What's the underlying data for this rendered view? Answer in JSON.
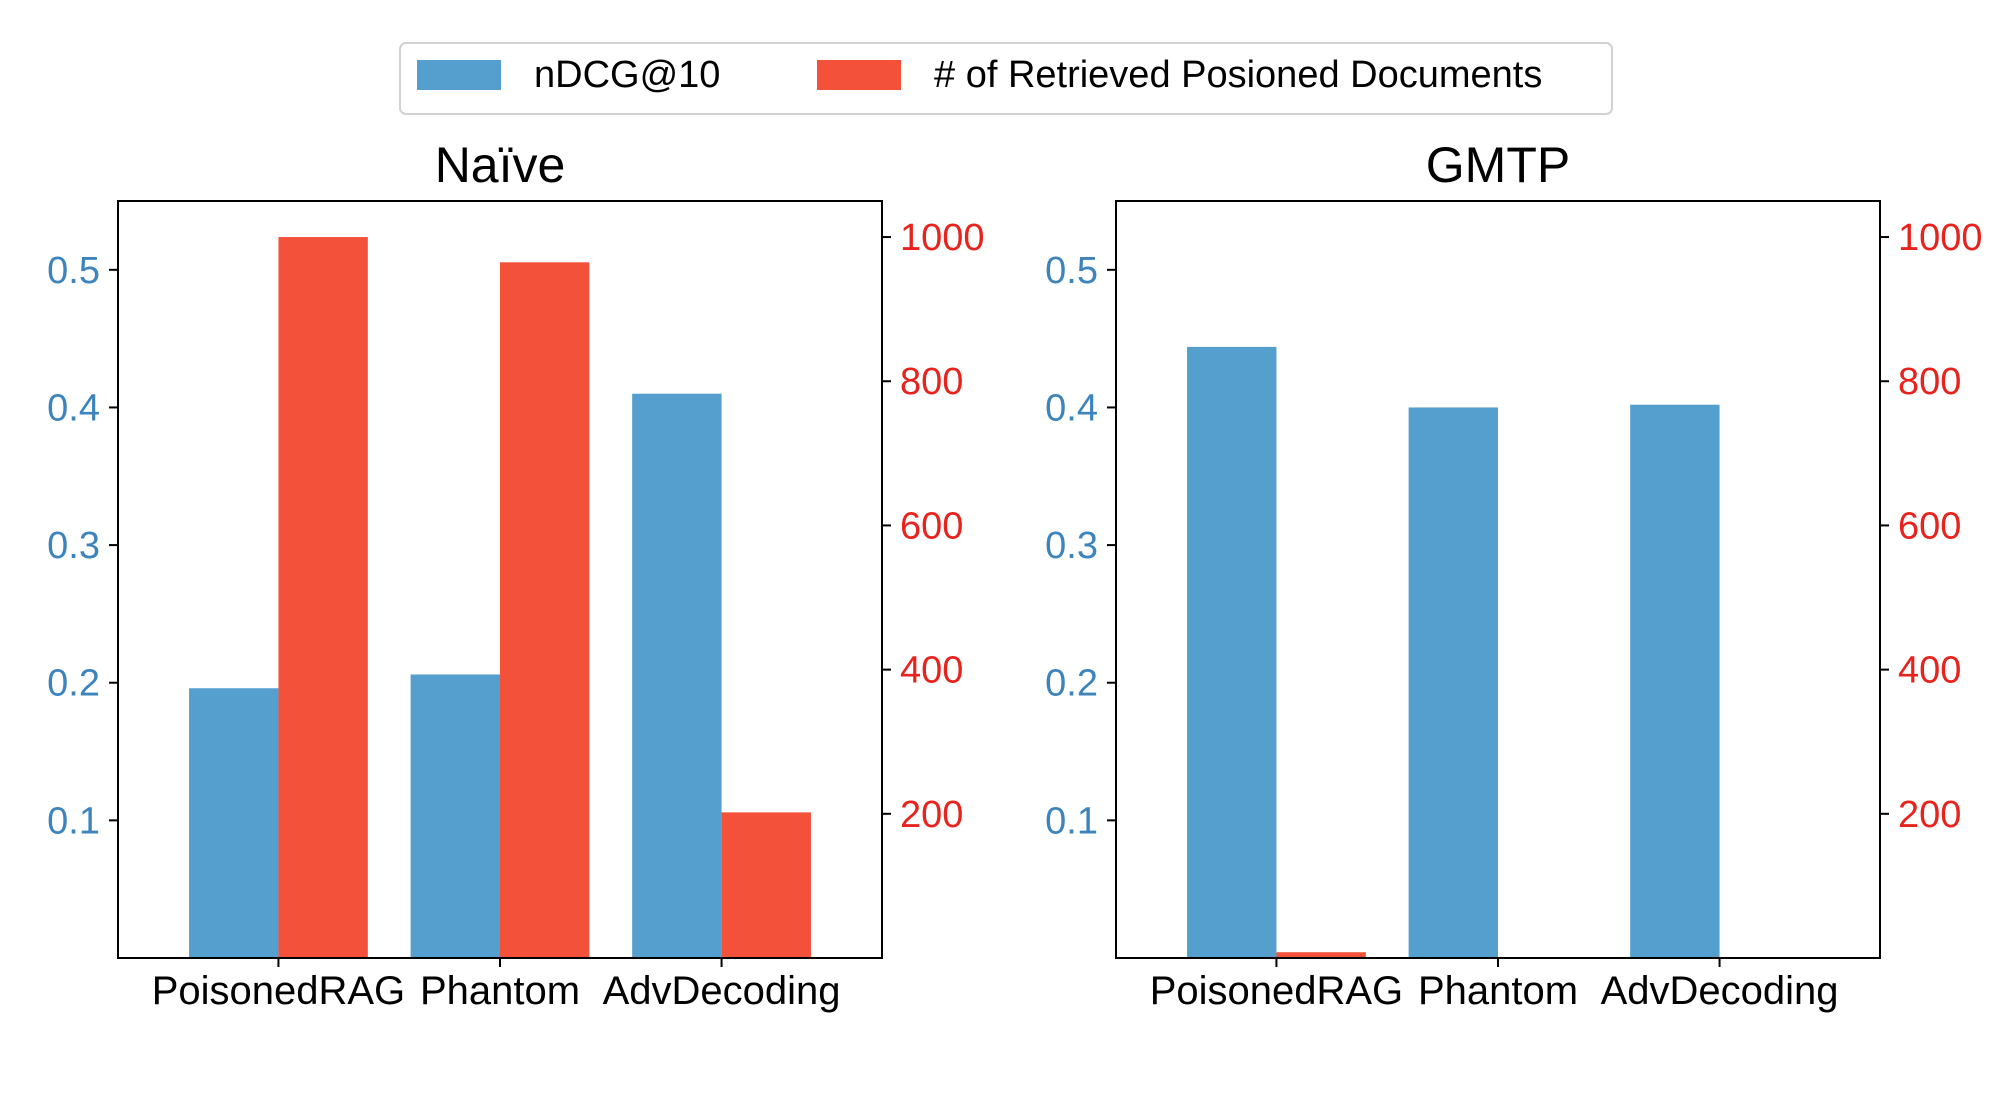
{
  "colors": {
    "ndcg": "#559fcf",
    "poisoned": "#f4513a",
    "left_axis_text": "#3d84bc",
    "right_axis_text": "#e8231d",
    "frame": "#000000"
  },
  "legend": {
    "placement": "top-center",
    "items": [
      {
        "label": "nDCG@10",
        "color": "#559fcf"
      },
      {
        "label": "# of Retrieved Posioned Documents",
        "color": "#f4513a"
      }
    ]
  },
  "chart_data": [
    {
      "type": "bar",
      "title": "Naïve",
      "categories": [
        "PoisonedRAG",
        "Phantom",
        "AdvDecoding"
      ],
      "series": [
        {
          "name": "nDCG@10",
          "axis": "left",
          "values": [
            0.196,
            0.206,
            0.41
          ]
        },
        {
          "name": "# of Retrieved Posioned Documents",
          "axis": "right",
          "values": [
            1000,
            965,
            202
          ]
        }
      ],
      "left_axis": {
        "ylim": [
          0.0,
          0.55
        ],
        "ticks": [
          0.1,
          0.2,
          0.3,
          0.4,
          0.5
        ],
        "tick_labels": [
          "0.1",
          "0.2",
          "0.3",
          "0.4",
          "0.5"
        ]
      },
      "right_axis": {
        "ylim": [
          0,
          1050
        ],
        "ticks": [
          200,
          400,
          600,
          800,
          1000
        ],
        "tick_labels": [
          "200",
          "400",
          "600",
          "800",
          "1000"
        ]
      },
      "grid": false
    },
    {
      "type": "bar",
      "title": "GMTP",
      "categories": [
        "PoisonedRAG",
        "Phantom",
        "AdvDecoding"
      ],
      "series": [
        {
          "name": "nDCG@10",
          "axis": "left",
          "values": [
            0.444,
            0.4,
            0.402
          ]
        },
        {
          "name": "# of Retrieved Posioned Documents",
          "axis": "right",
          "values": [
            8,
            0,
            0
          ]
        }
      ],
      "left_axis": {
        "ylim": [
          0.0,
          0.55
        ],
        "ticks": [
          0.1,
          0.2,
          0.3,
          0.4,
          0.5
        ],
        "tick_labels": [
          "0.1",
          "0.2",
          "0.3",
          "0.4",
          "0.5"
        ]
      },
      "right_axis": {
        "ylim": [
          0,
          1050
        ],
        "ticks": [
          200,
          400,
          600,
          800,
          1000
        ],
        "tick_labels": [
          "200",
          "400",
          "600",
          "800",
          "1000"
        ]
      },
      "grid": false
    }
  ]
}
